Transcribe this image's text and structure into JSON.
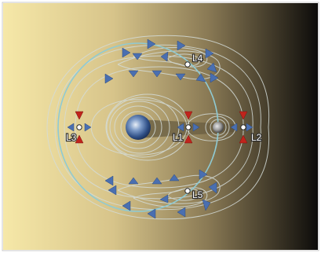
{
  "points": [
    {
      "id": "L1",
      "label": "L1"
    },
    {
      "id": "L2",
      "label": "L2"
    },
    {
      "id": "L3",
      "label": "L3"
    },
    {
      "id": "L4",
      "label": "L4"
    },
    {
      "id": "L5",
      "label": "L5"
    }
  ],
  "colors": {
    "contour": "#cfd8d6",
    "orbit": "#8fcad3",
    "arrow_blue": "#4a6fb0",
    "arrow_red": "#c0241c",
    "gradient_light": "#f4e6a8",
    "gradient_dark": "#0c0b09"
  },
  "icons": [
    "earth-icon",
    "moon-icon",
    "lagrange-point-icon",
    "direction-arrow-icon",
    "stable-arrow-icon",
    "unstable-arrow-icon"
  ]
}
